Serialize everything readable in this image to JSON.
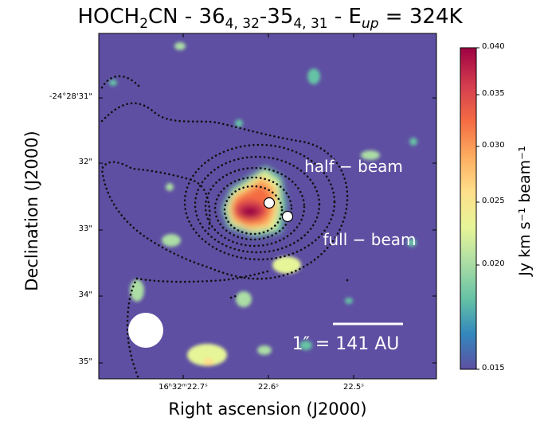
{
  "chart_data": {
    "type": "heatmap",
    "title_parts": {
      "molecule": "HOCH",
      "molecule_sub": "2",
      "molecule_rest": "CN - 36",
      "upper_sub": "4, 32",
      "mid": "-35",
      "lower_sub": "4, 31",
      "eup": " - E",
      "eup_sub": "up",
      "energy": " = 324K"
    },
    "xlabel": "Right ascension (J2000)",
    "ylabel": "Declination (J2000)",
    "colorbar": {
      "label": "Jy km s⁻¹ beam⁻¹",
      "range": [
        0.015,
        0.04
      ],
      "ticks": [
        "0.015",
        "0.020",
        "0.025",
        "0.030",
        "0.035",
        "0.040"
      ],
      "colormap": "Spectral_r",
      "colors": [
        "#5e4fa2",
        "#3288bd",
        "#66c2a5",
        "#abdda4",
        "#e6f598",
        "#fee08b",
        "#fdae61",
        "#f46d43",
        "#d53e4f",
        "#9e0142"
      ]
    },
    "y_ticks": [
      "-24°28'31\"",
      "32\"",
      "33\"",
      "34\"",
      "35\""
    ],
    "x_ticks": [
      "16ʰ32ᵐ22.7ˢ",
      "22.6ˢ",
      "22.5ˢ"
    ],
    "background_color": "#5e4fa2",
    "annotations": {
      "half_beam": "half − beam",
      "full_beam": "full − beam",
      "scale": "1″ = 141 AU"
    },
    "markers": [
      {
        "label": "half-beam position",
        "ra_s": 22.6,
        "dec_arcsec": 32.62
      },
      {
        "label": "full-beam position",
        "ra_s": 22.572,
        "dec_arcsec": 32.8
      }
    ],
    "emission_peak": {
      "value": 0.039,
      "ra_s": 22.618,
      "dec_arcsec": 32.75
    }
  }
}
